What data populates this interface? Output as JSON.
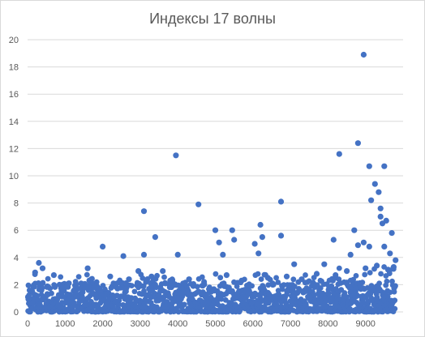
{
  "chart_data": {
    "type": "scatter",
    "title": "Индексы 17 волны",
    "xlabel": "",
    "ylabel": "",
    "xlim": [
      0,
      10000
    ],
    "ylim": [
      0,
      20
    ],
    "x_ticks": [
      "0",
      "1000",
      "2000",
      "3000",
      "4000",
      "5000",
      "6000",
      "7000",
      "8000",
      "9000"
    ],
    "y_ticks": [
      "0",
      "2",
      "4",
      "6",
      "8",
      "10",
      "12",
      "14",
      "16",
      "18",
      "20"
    ],
    "grid": "horizontal",
    "legend": "none",
    "series": [
      {
        "color": "#4472c4",
        "points": [
          [
            8950,
            18.9
          ],
          [
            8800,
            12.4
          ],
          [
            8300,
            11.6
          ],
          [
            3950,
            11.5
          ],
          [
            9500,
            10.7
          ],
          [
            9100,
            10.7
          ],
          [
            9250,
            9.4
          ],
          [
            9350,
            8.8
          ],
          [
            9150,
            8.2
          ],
          [
            6750,
            8.1
          ],
          [
            4550,
            7.9
          ],
          [
            9400,
            7.6
          ],
          [
            3100,
            7.4
          ],
          [
            9400,
            7.0
          ],
          [
            9550,
            6.7
          ],
          [
            9450,
            6.5
          ],
          [
            6200,
            6.4
          ],
          [
            5450,
            6.0
          ],
          [
            5000,
            6.0
          ],
          [
            8700,
            6.0
          ],
          [
            9700,
            5.8
          ],
          [
            6750,
            5.6
          ],
          [
            6250,
            5.5
          ],
          [
            3400,
            5.5
          ],
          [
            5500,
            5.3
          ],
          [
            8150,
            5.3
          ],
          [
            5100,
            5.1
          ],
          [
            6050,
            5.0
          ],
          [
            8950,
            5.1
          ],
          [
            8800,
            4.9
          ],
          [
            2000,
            4.8
          ],
          [
            9100,
            4.8
          ],
          [
            9500,
            4.8
          ],
          [
            3100,
            4.2
          ],
          [
            4000,
            4.2
          ],
          [
            2550,
            4.1
          ],
          [
            8600,
            4.2
          ],
          [
            5200,
            4.2
          ],
          [
            6150,
            4.3
          ],
          [
            9650,
            4.3
          ],
          [
            300,
            3.6
          ],
          [
            400,
            3.2
          ],
          [
            1600,
            3.2
          ],
          [
            3600,
            3.0
          ],
          [
            2950,
            3.0
          ],
          [
            7100,
            3.5
          ],
          [
            7900,
            3.5
          ],
          [
            9800,
            3.8
          ],
          [
            9750,
            3.3
          ],
          [
            200,
            2.9
          ],
          [
            700,
            2.7
          ],
          [
            1100,
            2.1
          ],
          [
            1700,
            2.4
          ],
          [
            2200,
            2.6
          ],
          [
            2700,
            2.4
          ],
          [
            3300,
            2.6
          ],
          [
            3800,
            2.3
          ],
          [
            4300,
            2.4
          ],
          [
            4700,
            2.2
          ],
          [
            5300,
            2.7
          ],
          [
            5700,
            2.3
          ],
          [
            6400,
            2.5
          ],
          [
            6900,
            2.6
          ],
          [
            7300,
            2.4
          ],
          [
            7700,
            2.8
          ],
          [
            8200,
            2.7
          ],
          [
            8500,
            3.0
          ],
          [
            9000,
            3.2
          ],
          [
            9300,
            3.4
          ],
          [
            9600,
            3.1
          ]
        ]
      }
    ]
  }
}
